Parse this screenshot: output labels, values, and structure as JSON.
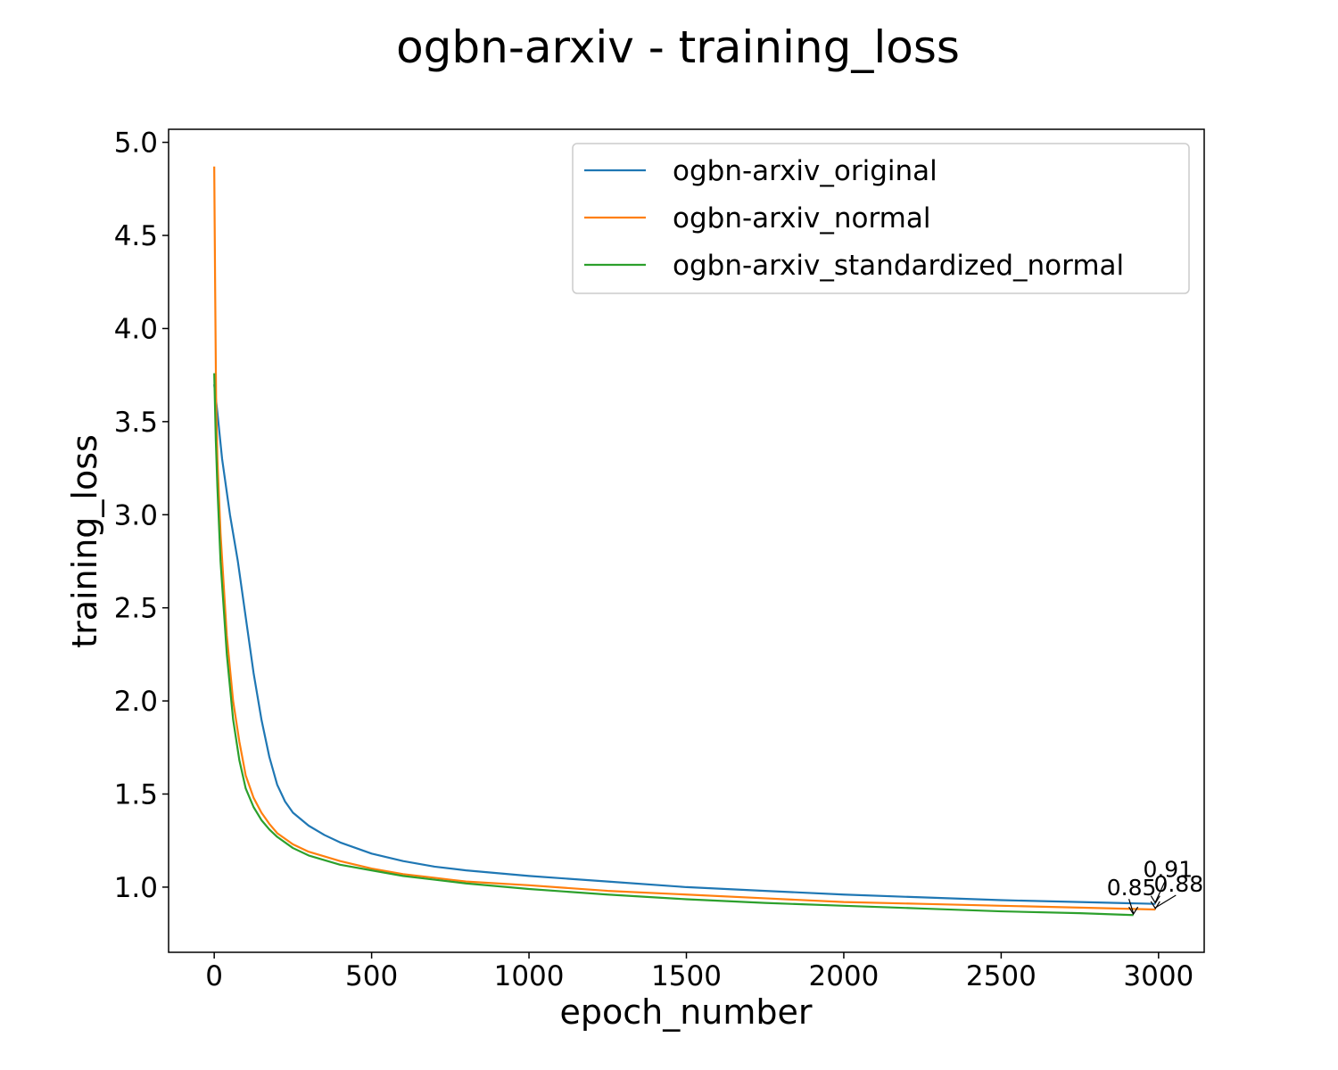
{
  "chart_data": {
    "type": "line",
    "title": "ogbn-arxiv - training_loss",
    "xlabel": "epoch_number",
    "ylabel": "training_loss",
    "xlim": [
      -145,
      3145
    ],
    "ylim": [
      0.65,
      5.07
    ],
    "xticks": [
      0,
      500,
      1000,
      1500,
      2000,
      2500,
      3000
    ],
    "yticks": [
      1.0,
      1.5,
      2.0,
      2.5,
      3.0,
      3.5,
      4.0,
      4.5,
      5.0
    ],
    "xtick_labels": [
      "0",
      "500",
      "1000",
      "1500",
      "2000",
      "2500",
      "3000"
    ],
    "ytick_labels": [
      "1.0",
      "1.5",
      "2.0",
      "2.5",
      "3.0",
      "3.5",
      "4.0",
      "4.5",
      "5.0"
    ],
    "grid": false,
    "legend_position": "top-right",
    "series": [
      {
        "name": "ogbn-arxiv_original",
        "color": "#1f77b4",
        "x": [
          0,
          10,
          25,
          50,
          75,
          100,
          125,
          150,
          175,
          200,
          225,
          250,
          300,
          350,
          400,
          500,
          600,
          700,
          800,
          1000,
          1250,
          1500,
          1750,
          2000,
          2250,
          2500,
          2750,
          2990
        ],
        "y": [
          3.7,
          3.55,
          3.3,
          3.0,
          2.75,
          2.45,
          2.15,
          1.9,
          1.7,
          1.55,
          1.46,
          1.4,
          1.33,
          1.28,
          1.24,
          1.18,
          1.14,
          1.11,
          1.09,
          1.06,
          1.03,
          1.0,
          0.98,
          0.96,
          0.945,
          0.93,
          0.92,
          0.91
        ]
      },
      {
        "name": "ogbn-arxiv_normal",
        "color": "#ff7f0e",
        "x": [
          0,
          3,
          6,
          10,
          20,
          40,
          60,
          80,
          100,
          125,
          150,
          175,
          200,
          250,
          300,
          400,
          500,
          600,
          700,
          800,
          1000,
          1250,
          1500,
          1750,
          2000,
          2250,
          2500,
          2750,
          2990
        ],
        "y": [
          4.87,
          4.2,
          3.6,
          3.3,
          2.9,
          2.35,
          2.0,
          1.78,
          1.6,
          1.48,
          1.4,
          1.34,
          1.29,
          1.23,
          1.19,
          1.14,
          1.1,
          1.07,
          1.05,
          1.03,
          1.01,
          0.98,
          0.96,
          0.94,
          0.92,
          0.91,
          0.9,
          0.89,
          0.88
        ]
      },
      {
        "name": "ogbn-arxiv_standardized_normal",
        "color": "#2ca02c",
        "x": [
          0,
          5,
          10,
          20,
          40,
          60,
          80,
          100,
          125,
          150,
          175,
          200,
          250,
          300,
          400,
          500,
          600,
          700,
          800,
          1000,
          1250,
          1500,
          1750,
          2000,
          2250,
          2500,
          2750,
          2920
        ],
        "y": [
          3.76,
          3.4,
          3.15,
          2.75,
          2.25,
          1.9,
          1.68,
          1.53,
          1.43,
          1.36,
          1.31,
          1.27,
          1.21,
          1.17,
          1.12,
          1.09,
          1.06,
          1.04,
          1.02,
          0.99,
          0.96,
          0.935,
          0.915,
          0.9,
          0.885,
          0.87,
          0.86,
          0.85
        ]
      }
    ],
    "annotations": [
      {
        "text": "0.91",
        "x": 2990,
        "y": 0.91
      },
      {
        "text": "0.88",
        "x": 2990,
        "y": 0.88
      },
      {
        "text": "0.85",
        "x": 2920,
        "y": 0.85
      }
    ]
  }
}
